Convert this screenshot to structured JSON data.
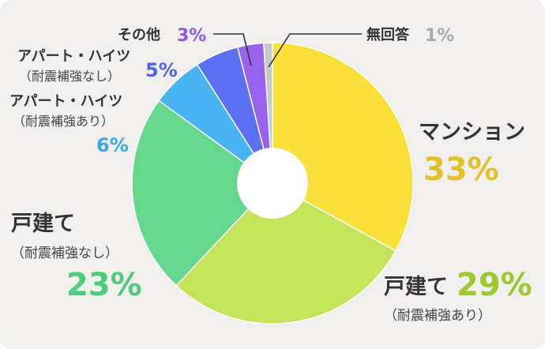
{
  "chart_data": {
    "type": "pie",
    "donut": true,
    "colors": {
      "background": "#f1f0ef",
      "hole": "#ffffff",
      "label_text": "#333333"
    },
    "slices": [
      {
        "label": "マンション",
        "sublabel": "",
        "pct_text": "33%",
        "value": 33,
        "color": "#fbe03a",
        "text_color": "#e3c12a"
      },
      {
        "label": "戸建て",
        "sublabel": "（耐震補強あり）",
        "pct_text": "29%",
        "value": 29,
        "color": "#c4e45a",
        "text_color": "#9cca2e"
      },
      {
        "label": "戸建て",
        "sublabel": "（耐震補強なし）",
        "pct_text": "23%",
        "value": 23,
        "color": "#64d98e",
        "text_color": "#4ecb7c"
      },
      {
        "label": "アパート・ハイツ",
        "sublabel": "（耐震補強あり）",
        "pct_text": "6%",
        "value": 6,
        "color": "#47b3f3",
        "text_color": "#3aa6ec"
      },
      {
        "label": "アパート・ハイツ",
        "sublabel": "（耐震補強なし）",
        "pct_text": "5%",
        "value": 5,
        "color": "#5a6ff1",
        "text_color": "#4f63e6"
      },
      {
        "label": "その他",
        "sublabel": "",
        "pct_text": "3%",
        "value": 3,
        "color": "#9a63ef",
        "text_color": "#8f5ae8"
      },
      {
        "label": "無回答",
        "sublabel": "",
        "pct_text": "1%",
        "value": 1,
        "color": "#c9c9c9",
        "text_color": "#a9a9a9"
      }
    ]
  }
}
